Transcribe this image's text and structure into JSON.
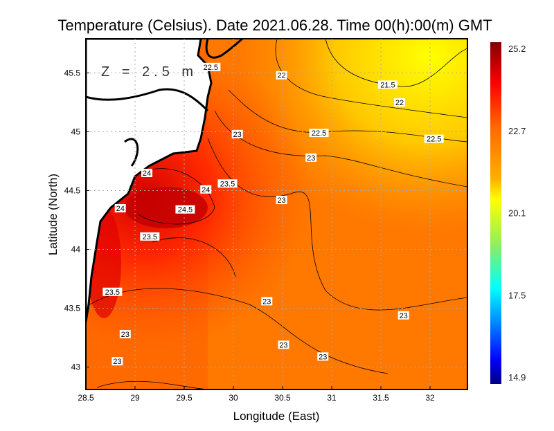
{
  "title": "Temperature (Celsius). Date 2021.06.28. Time 00(h):00(m)  GMT",
  "depth_label": "Z = 2.5 m",
  "xlabel": "Longitude (East)",
  "ylabel": "Latitude (North)",
  "x_ticks": [
    28.5,
    29,
    29.5,
    30,
    30.5,
    31,
    31.5,
    32
  ],
  "y_ticks": [
    43,
    43.5,
    44,
    44.5,
    45,
    45.5
  ],
  "xlim": [
    28.5,
    32.38
  ],
  "ylim": [
    42.81,
    45.79
  ],
  "colorbar": {
    "min": 14.9,
    "max": 25.2,
    "tick_labels": [
      "25.2",
      "22.7",
      "20.1",
      "17.5",
      "14.9"
    ],
    "colors": [
      "#800000",
      "#ff0000",
      "#ff6a00",
      "#ffff00",
      "#66ff99",
      "#00ffff",
      "#0088ff",
      "#0000ff",
      "#000080"
    ]
  },
  "contour_labels": [
    {
      "text": "22.5",
      "lon": 29.77,
      "lat": 45.55
    },
    {
      "text": "22",
      "lon": 30.49,
      "lat": 45.48
    },
    {
      "text": "21.5",
      "lon": 31.57,
      "lat": 45.4
    },
    {
      "text": "22",
      "lon": 31.69,
      "lat": 45.25
    },
    {
      "text": "23",
      "lon": 30.04,
      "lat": 44.98
    },
    {
      "text": "22.5",
      "lon": 30.87,
      "lat": 44.99
    },
    {
      "text": "22.5",
      "lon": 32.04,
      "lat": 44.94
    },
    {
      "text": "23",
      "lon": 30.79,
      "lat": 44.78
    },
    {
      "text": "24",
      "lon": 29.12,
      "lat": 44.65
    },
    {
      "text": "23.5",
      "lon": 29.94,
      "lat": 44.56
    },
    {
      "text": "24",
      "lon": 29.72,
      "lat": 44.51
    },
    {
      "text": "23",
      "lon": 30.49,
      "lat": 44.42
    },
    {
      "text": "24",
      "lon": 28.85,
      "lat": 44.35
    },
    {
      "text": "24.5",
      "lon": 29.51,
      "lat": 44.34
    },
    {
      "text": "23.5",
      "lon": 29.15,
      "lat": 44.11
    },
    {
      "text": "23.5",
      "lon": 28.77,
      "lat": 43.64
    },
    {
      "text": "23",
      "lon": 30.34,
      "lat": 43.56
    },
    {
      "text": "23",
      "lon": 31.73,
      "lat": 43.44
    },
    {
      "text": "23",
      "lon": 28.9,
      "lat": 43.28
    },
    {
      "text": "23",
      "lon": 30.51,
      "lat": 43.19
    },
    {
      "text": "23",
      "lon": 30.91,
      "lat": 43.09
    },
    {
      "text": "23",
      "lon": 28.82,
      "lat": 43.05
    }
  ]
}
